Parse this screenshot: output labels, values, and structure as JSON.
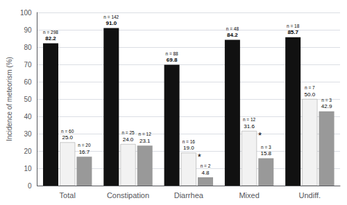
{
  "chart_data": {
    "type": "bar",
    "ylabel": "Incidence of meteorism (%)",
    "categories": [
      "Total",
      "Constipation",
      "Diarrhea",
      "Mixed",
      "Undiff."
    ],
    "series": [
      {
        "color": "#111111",
        "values": [
          82.2,
          91.0,
          69.8,
          84.2,
          85.7
        ],
        "value_labels": [
          "82.2",
          "91.0",
          "69.8",
          "84.2",
          "85.7"
        ],
        "n_labels": [
          "n = 298",
          "n = 142",
          "n = 88",
          "n = 48",
          "n = 18"
        ]
      },
      {
        "color": "#f2f2f2",
        "values": [
          25.0,
          24.0,
          19.0,
          31.6,
          50.0
        ],
        "value_labels": [
          "25.0",
          "24.0",
          "19.0",
          "31.6",
          "50.0"
        ],
        "n_labels": [
          "n = 60",
          "n = 25",
          "n = 16",
          "n = 12",
          "n = 7"
        ]
      },
      {
        "color": "#999999",
        "values": [
          16.7,
          23.1,
          4.8,
          15.8,
          42.9
        ],
        "value_labels": [
          "16.7",
          "23.1",
          "4.8",
          "15.8",
          "42.9"
        ],
        "n_labels": [
          "n = 20",
          "n = 12",
          "n = 2",
          "n = 3",
          "n = 3"
        ]
      }
    ],
    "ylim": [
      0,
      100
    ],
    "yticks": [
      0,
      10,
      20,
      30,
      40,
      50,
      60,
      70,
      80,
      90,
      100
    ],
    "grid": true,
    "data_labels": true,
    "annotations": [
      {
        "text": "*",
        "category": "Diarrhea",
        "series": 1
      },
      {
        "text": "*",
        "category": "Mixed",
        "series": 1
      }
    ]
  }
}
